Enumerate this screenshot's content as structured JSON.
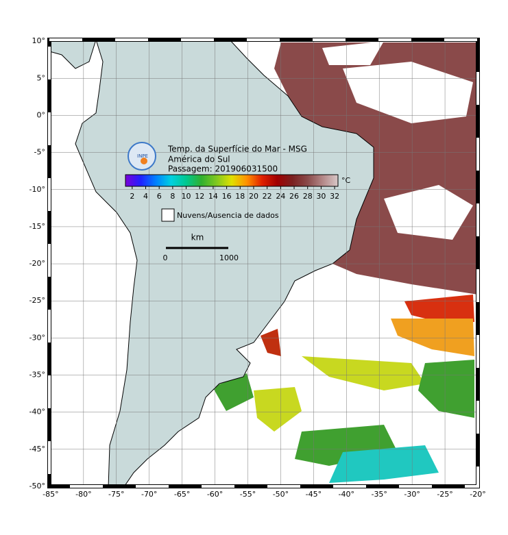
{
  "title": {
    "line1": "Temp. da Superfície do Mar - MSG",
    "line2": "América do Sul",
    "line3": "Passagem: 201906031500"
  },
  "logo": "INPE",
  "colorbar": {
    "unit": "°C",
    "range": [
      1,
      32.5
    ],
    "ticks": [
      2,
      4,
      6,
      8,
      10,
      12,
      14,
      16,
      18,
      20,
      22,
      24,
      26,
      28,
      30,
      32
    ],
    "colors": [
      "#7a00d8",
      "#2020ff",
      "#0080ff",
      "#00d0e0",
      "#00c890",
      "#30b030",
      "#80c820",
      "#e0e000",
      "#ff9000",
      "#e02000",
      "#a00000",
      "#7a2020",
      "#8a4a4a",
      "#b48888",
      "#d8c8c8"
    ]
  },
  "legend": {
    "label": "Nuvens/Ausencia de dados"
  },
  "scale_bar": {
    "unit": "km",
    "start": 0,
    "end": 1000
  },
  "axes": {
    "lon_range": [
      -85.2,
      -20
    ],
    "lat_range": [
      10.2,
      -50
    ],
    "lon_ticks": [
      {
        "value": -85,
        "label": "-85°"
      },
      {
        "value": -80,
        "label": "-80°"
      },
      {
        "value": -75,
        "label": "-75°"
      },
      {
        "value": -70,
        "label": "-70°"
      },
      {
        "value": -65,
        "label": "-65°"
      },
      {
        "value": -60,
        "label": "-60°"
      },
      {
        "value": -55,
        "label": "-55°"
      },
      {
        "value": -50,
        "label": "-50°"
      },
      {
        "value": -45,
        "label": "-45°"
      },
      {
        "value": -40,
        "label": "-40°"
      },
      {
        "value": -35,
        "label": "-35°"
      },
      {
        "value": -30,
        "label": "-30°"
      },
      {
        "value": -25,
        "label": "-25°"
      },
      {
        "value": -20,
        "label": "-20°"
      }
    ],
    "lat_ticks": [
      {
        "value": 10,
        "label": "10°"
      },
      {
        "value": 5,
        "label": "5°"
      },
      {
        "value": 0,
        "label": "0°"
      },
      {
        "value": -5,
        "label": "-5°"
      },
      {
        "value": -10,
        "label": "-10°"
      },
      {
        "value": -15,
        "label": "-15°"
      },
      {
        "value": -20,
        "label": "-20°"
      },
      {
        "value": -25,
        "label": "-25°"
      },
      {
        "value": -30,
        "label": "-30°"
      },
      {
        "value": -35,
        "label": "-35°"
      },
      {
        "value": -40,
        "label": "-40°"
      },
      {
        "value": -45,
        "label": "-45°"
      },
      {
        "value": -50,
        "label": "-50°"
      }
    ]
  }
}
